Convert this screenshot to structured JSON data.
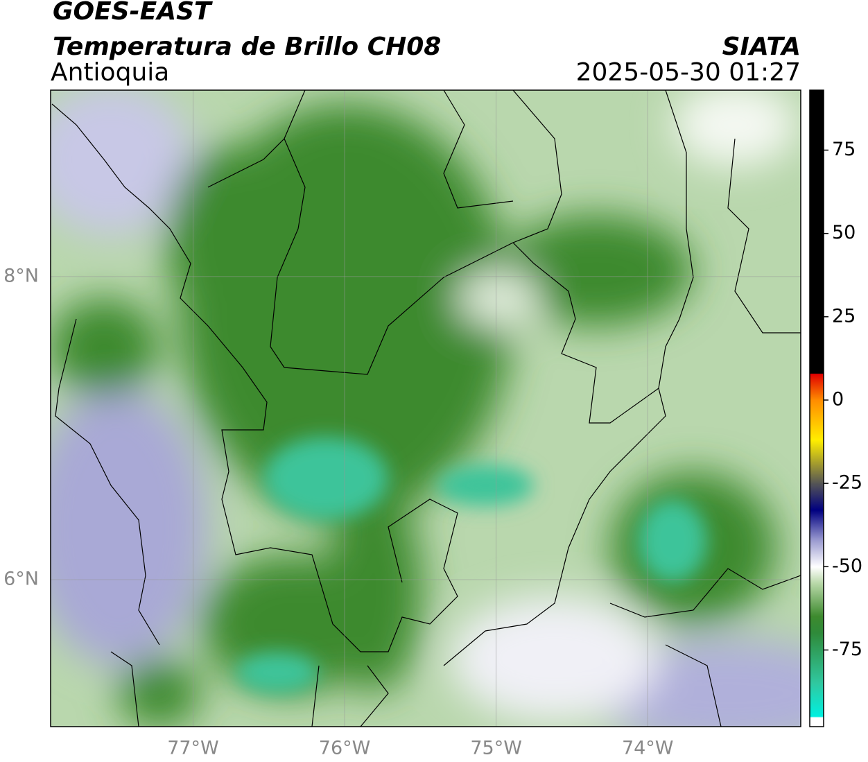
{
  "header": {
    "title": "GOES-EAST",
    "subtitle": "Temperatura de Brillo CH08",
    "region": "Antioquia",
    "source": "SIATA",
    "datetime": "2025-05-30 01:27"
  },
  "map": {
    "xlim": [
      -77.94,
      -72.99
    ],
    "ylim": [
      5.03,
      9.23
    ],
    "xticks": [
      {
        "value": -77,
        "label": "77°W"
      },
      {
        "value": -76,
        "label": "76°W"
      },
      {
        "value": -75,
        "label": "75°W"
      },
      {
        "value": -74,
        "label": "74°W"
      }
    ],
    "yticks": [
      {
        "value": 6,
        "label": "6°N"
      },
      {
        "value": 8,
        "label": "8°N"
      }
    ],
    "grid": true,
    "colorbar": {
      "lim": [
        -98,
        93
      ],
      "ticks": [
        -75,
        -50,
        -25,
        0,
        25,
        50,
        75
      ]
    }
  }
}
